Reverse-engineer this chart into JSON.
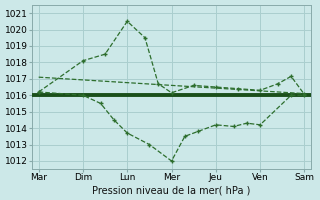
{
  "xlabel": "Pression niveau de la mer( hPa )",
  "background_color": "#cce8e8",
  "grid_color": "#aacece",
  "line_color": "#2d6e2d",
  "thick_line_color": "#1a4f1a",
  "xlim": [
    -0.15,
    6.15
  ],
  "ylim": [
    1011.5,
    1021.5
  ],
  "yticks": [
    1012,
    1013,
    1014,
    1015,
    1016,
    1017,
    1018,
    1019,
    1020,
    1021
  ],
  "xtick_labels": [
    "Mar",
    "Dim",
    "Lun",
    "Mer",
    "Jeu",
    "Ven",
    "Sam"
  ],
  "xtick_positions": [
    0,
    1,
    2,
    3,
    4,
    5,
    6
  ],
  "line_thick_y": 1016.0,
  "upper_x": [
    0,
    1.0,
    1.5,
    2.0,
    2.4,
    2.7,
    3.0,
    3.5,
    4.0,
    4.5,
    5.0,
    5.4,
    5.7,
    6.0
  ],
  "upper_y": [
    1016.2,
    1018.1,
    1018.5,
    1020.5,
    1019.5,
    1016.7,
    1016.15,
    1016.6,
    1016.5,
    1016.4,
    1016.3,
    1016.7,
    1017.15,
    1016.05
  ],
  "lower_x": [
    0,
    1.0,
    1.4,
    1.7,
    2.0,
    2.5,
    3.0,
    3.3,
    3.6,
    4.0,
    4.4,
    4.7,
    5.0,
    5.7,
    6.0
  ],
  "lower_y": [
    1016.2,
    1016.0,
    1015.5,
    1014.5,
    1013.7,
    1013.0,
    1012.0,
    1013.5,
    1013.8,
    1014.2,
    1014.1,
    1014.3,
    1014.2,
    1016.0,
    1016.0
  ],
  "trend_x": [
    0,
    2.0,
    6.0
  ],
  "trend_y": [
    1016.8,
    1017.0,
    1016.1
  ],
  "xlabel_fontsize": 7,
  "tick_fontsize": 6.5
}
